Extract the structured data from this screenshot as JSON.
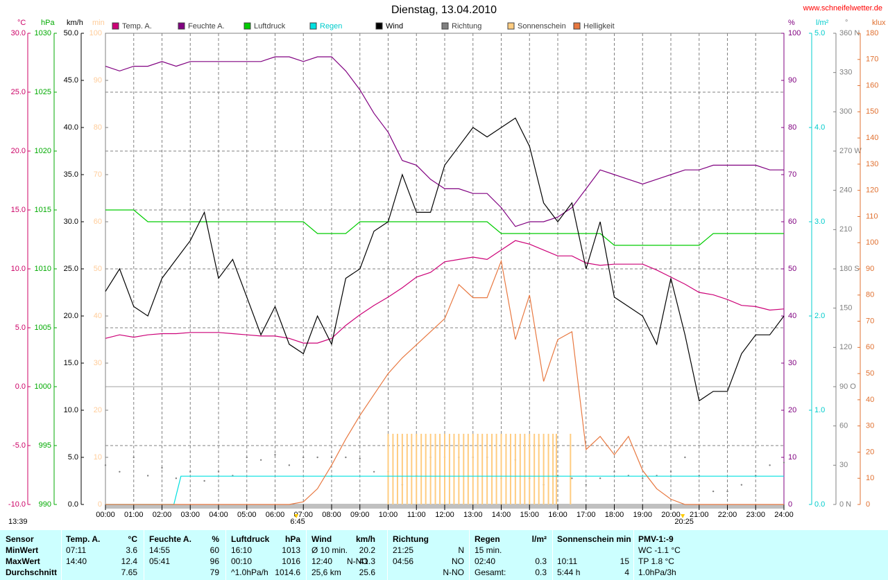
{
  "chart_data": {
    "type": "line",
    "title": "Dienstag, 13.04.2010",
    "source": "www.schneifelwetter.de",
    "time": "13:39",
    "annotations": [
      {
        "x": 6.75,
        "label": "6:45"
      },
      {
        "x": 20.42,
        "label": "20:25"
      }
    ],
    "xlim": [
      0,
      24
    ],
    "xticks": [
      {
        "value": 0,
        "label": "00:00"
      },
      {
        "value": 1,
        "label": "01:00"
      },
      {
        "value": 2,
        "label": "02:00"
      },
      {
        "value": 3,
        "label": "03:00"
      },
      {
        "value": 4,
        "label": "04:00"
      },
      {
        "value": 5,
        "label": "05:00"
      },
      {
        "value": 6,
        "label": "06:00"
      },
      {
        "value": 7,
        "label": "07:00"
      },
      {
        "value": 8,
        "label": "08:00"
      },
      {
        "value": 9,
        "label": "09:00"
      },
      {
        "value": 10,
        "label": "10:00"
      },
      {
        "value": 11,
        "label": "11:00"
      },
      {
        "value": 12,
        "label": "12:00"
      },
      {
        "value": 13,
        "label": "13:00"
      },
      {
        "value": 14,
        "label": "14:00"
      },
      {
        "value": 15,
        "label": "15:00"
      },
      {
        "value": 16,
        "label": "16:00"
      },
      {
        "value": 17,
        "label": "17:00"
      },
      {
        "value": 18,
        "label": "18:00"
      },
      {
        "value": 19,
        "label": "19:00"
      },
      {
        "value": 20,
        "label": "20:00"
      },
      {
        "value": 21,
        "label": "21:00"
      },
      {
        "value": 22,
        "label": "22:00"
      },
      {
        "value": 23,
        "label": "23:00"
      },
      {
        "value": 24,
        "label": "24:00"
      }
    ],
    "grid": true,
    "axes": [
      {
        "unit": "°C",
        "lim": [
          -10,
          30
        ],
        "color": "#cc0066",
        "ticks": [
          {
            "value": -10,
            "label": "-10.0"
          },
          {
            "value": -5,
            "label": "-5.0"
          },
          {
            "value": 0,
            "label": "0.0"
          },
          {
            "value": 5,
            "label": "5.0"
          },
          {
            "value": 10,
            "label": "10.0"
          },
          {
            "value": 15,
            "label": "15.0"
          },
          {
            "value": 20,
            "label": "20.0"
          },
          {
            "value": 25,
            "label": "25.0"
          },
          {
            "value": 30,
            "label": "30.0"
          }
        ]
      },
      {
        "unit": "hPa",
        "lim": [
          990,
          1030
        ],
        "color": "#00aa00",
        "ticks": [
          990,
          995,
          1000,
          1005,
          1010,
          1015,
          1020,
          1025,
          1030
        ]
      },
      {
        "unit": "km/h",
        "lim": [
          0,
          50
        ],
        "color": "#000000",
        "ticks": [
          {
            "value": 0,
            "label": "0.0"
          },
          {
            "value": 5,
            "label": "5.0"
          },
          {
            "value": 10,
            "label": "10.0"
          },
          {
            "value": 15,
            "label": "15.0"
          },
          {
            "value": 20,
            "label": "20.0"
          },
          {
            "value": 25,
            "label": "25.0"
          },
          {
            "value": 30,
            "label": "30.0"
          },
          {
            "value": 35,
            "label": "35.0"
          },
          {
            "value": 40,
            "label": "40.0"
          },
          {
            "value": 45,
            "label": "45.0"
          },
          {
            "value": 50,
            "label": "50.0"
          }
        ]
      },
      {
        "unit": "min",
        "lim": [
          0,
          100
        ],
        "color": "#ffcc99",
        "ticks": [
          0,
          10,
          20,
          30,
          40,
          50,
          60,
          70,
          80,
          90,
          100
        ]
      },
      {
        "unit": "%",
        "lim": [
          0,
          100
        ],
        "color": "#800080",
        "ticks": [
          0,
          10,
          20,
          30,
          40,
          50,
          60,
          70,
          80,
          90,
          100
        ]
      },
      {
        "unit": "l/m²",
        "lim": [
          0,
          5
        ],
        "color": "#00cccc",
        "ticks": [
          {
            "value": 0,
            "label": "0.0"
          },
          {
            "value": 1,
            "label": "1.0"
          },
          {
            "value": 2,
            "label": "2.0"
          },
          {
            "value": 3,
            "label": "3.0"
          },
          {
            "value": 4,
            "label": "4.0"
          },
          {
            "value": 5,
            "label": "5.0"
          }
        ]
      },
      {
        "unit": "°",
        "lim": [
          0,
          360
        ],
        "color": "#808080",
        "ticks": [
          {
            "value": 0,
            "label": "0 N"
          },
          30,
          60,
          {
            "value": 90,
            "label": "90 O"
          },
          120,
          150,
          {
            "value": 180,
            "label": "180 S"
          },
          210,
          240,
          {
            "value": 270,
            "label": "270 W"
          },
          300,
          330,
          {
            "value": 360,
            "label": "360 N"
          }
        ]
      },
      {
        "unit": "klux",
        "lim": [
          0,
          180
        ],
        "color": "#e07030",
        "ticks": [
          0,
          10,
          20,
          30,
          40,
          50,
          60,
          70,
          80,
          90,
          100,
          110,
          120,
          130,
          140,
          150,
          160,
          170,
          180
        ]
      }
    ],
    "x": [
      0,
      0.5,
      1,
      1.5,
      2,
      2.5,
      3,
      3.5,
      4,
      4.5,
      5,
      5.5,
      6,
      6.5,
      7,
      7.5,
      8,
      8.5,
      9,
      9.5,
      10,
      10.5,
      11,
      11.5,
      12,
      12.5,
      13,
      13.5,
      14,
      14.5,
      15,
      15.5,
      16,
      16.5,
      17,
      17.5,
      18,
      18.5,
      19,
      19.5,
      20,
      20.5,
      21,
      21.5,
      22,
      22.5,
      23,
      23.5,
      24
    ],
    "series": [
      {
        "name": "Temp. A.",
        "color": "#cc0077",
        "axis": 0,
        "style": "line",
        "values": [
          4.1,
          4.4,
          4.2,
          4.4,
          4.5,
          4.5,
          4.6,
          4.6,
          4.6,
          4.5,
          4.4,
          4.3,
          4.3,
          4.1,
          3.7,
          3.7,
          4.1,
          5.2,
          6.1,
          6.9,
          7.6,
          8.4,
          9.3,
          9.7,
          10.6,
          10.8,
          11.0,
          10.8,
          11.6,
          12.4,
          12.1,
          11.6,
          11.1,
          11.1,
          10.5,
          10.3,
          10.4,
          10.4,
          10.4,
          9.9,
          9.3,
          8.7,
          8.0,
          7.8,
          7.4,
          6.9,
          6.8,
          6.5,
          6.6
        ]
      },
      {
        "name": "Feuchte A.",
        "color": "#800080",
        "axis": 4,
        "style": "line",
        "values": [
          93,
          92,
          93,
          93,
          94,
          93,
          94,
          94,
          94,
          94,
          94,
          94,
          95,
          95,
          94,
          95,
          95,
          92,
          88,
          83,
          79,
          73,
          72,
          69,
          67,
          67,
          66,
          66,
          63,
          59,
          60,
          60,
          61,
          63,
          67,
          71,
          70,
          69,
          68,
          69,
          70,
          71,
          71,
          72,
          72,
          72,
          72,
          71,
          71
        ]
      },
      {
        "name": "Luftdruck",
        "color": "#00cc00",
        "axis": 1,
        "style": "line",
        "values": [
          1015,
          1015,
          1015,
          1014,
          1014,
          1014,
          1014,
          1014,
          1014,
          1014,
          1014,
          1014,
          1014,
          1014,
          1014,
          1013,
          1013,
          1013,
          1014,
          1014,
          1014,
          1014,
          1014,
          1014,
          1014,
          1014,
          1014,
          1014,
          1013,
          1013,
          1013,
          1013,
          1013,
          1013,
          1013,
          1013,
          1012,
          1012,
          1012,
          1012,
          1012,
          1012,
          1012,
          1013,
          1013,
          1013,
          1013,
          1013,
          1013
        ]
      },
      {
        "name": "Regen",
        "color": "#00e0e0",
        "axis": 5,
        "style": "line",
        "x": [
          0,
          2.42,
          2.67,
          24
        ],
        "values": [
          0,
          0,
          0.3,
          0.3
        ]
      },
      {
        "name": "Wind",
        "color": "#000000",
        "axis": 2,
        "style": "line",
        "values": [
          22.6,
          25,
          21,
          20,
          24,
          26,
          28,
          31,
          24,
          26,
          22,
          18,
          21,
          17,
          16,
          20,
          17,
          24,
          25,
          29,
          30,
          35,
          31,
          31,
          36,
          38,
          40,
          39,
          40,
          41,
          38,
          32,
          30,
          32,
          25,
          30,
          22,
          21,
          20,
          17,
          24,
          18,
          11,
          12,
          12,
          16,
          18,
          18,
          20
        ]
      },
      {
        "name": "Richtung",
        "color": "#808080",
        "axis": 6,
        "style": "dots",
        "values": [
          30,
          25,
          36,
          22,
          28,
          20,
          25,
          18,
          25,
          22,
          36,
          34,
          38,
          30,
          36,
          36,
          36,
          36,
          35,
          25,
          25,
          15,
          22,
          36,
          36,
          36,
          36,
          36,
          20,
          34,
          20,
          15,
          22,
          20,
          15,
          20,
          25,
          22,
          20,
          22,
          25,
          36,
          22,
          10,
          10,
          15,
          22,
          30,
          32
        ]
      },
      {
        "name": "Sonnenschein",
        "color": "#ffcc80",
        "axis": 3,
        "style": "bars",
        "x": [
          10,
          10.17,
          10.33,
          10.5,
          10.67,
          10.83,
          11,
          11.17,
          11.33,
          11.5,
          11.67,
          11.83,
          12,
          12.17,
          12.33,
          12.5,
          12.67,
          12.83,
          13,
          13.17,
          13.33,
          13.5,
          13.67,
          13.83,
          14,
          14.17,
          14.33,
          14.5,
          14.67,
          14.83,
          15,
          15.17,
          15.33,
          15.5,
          15.67,
          15.83,
          15.95,
          16.45
        ],
        "values": [
          15,
          15,
          15,
          15,
          15,
          15,
          15,
          15,
          15,
          15,
          15,
          15,
          15,
          15,
          15,
          15,
          15,
          15,
          15,
          15,
          15,
          15,
          15,
          15,
          15,
          15,
          15,
          15,
          15,
          15,
          15,
          15,
          15,
          15,
          15,
          15,
          15,
          15
        ]
      },
      {
        "name": "Helligkeit",
        "color": "#e87840",
        "axis": 7,
        "style": "line",
        "values": [
          0,
          0,
          0,
          0,
          0,
          0,
          0,
          0,
          0,
          0,
          0,
          0,
          0,
          0,
          1,
          6,
          15,
          25,
          34,
          42,
          50,
          56,
          61,
          66,
          71,
          84,
          79,
          79,
          93,
          63,
          80,
          47,
          63,
          66,
          21,
          26,
          19,
          26,
          13,
          6,
          2,
          0,
          0,
          0,
          0,
          0,
          0,
          0,
          0
        ]
      }
    ]
  },
  "table": {
    "rows": [
      [
        "Sensor",
        "Temp. A.",
        "°C",
        "Feuchte A.",
        "%",
        "Luftdruck",
        "hPa",
        "Wind",
        null,
        "km/h",
        "Richtung",
        null,
        "Regen",
        "l/m²",
        "Sonnenschein min",
        null,
        "PMV-1:-9"
      ],
      [
        "MinWert",
        "07:11",
        "3.6",
        "14:55",
        "60",
        "16:10",
        "1013",
        "Ø 10 min.",
        null,
        "20.2",
        "21:25",
        "N",
        "15 min.",
        null,
        null,
        null,
        "WC -1.1 °C"
      ],
      [
        "MaxWert",
        "14:40",
        "12.4",
        "05:41",
        "96",
        "00:10",
        "1016",
        "12:40",
        "N-NO",
        "41.3",
        "04:56",
        "NO",
        "02:40",
        "0.3",
        "10:11",
        "15",
        "TP 1.8 °C"
      ],
      [
        "Durchschnitt",
        null,
        "7.65",
        null,
        "79",
        "^1.0hPa/h",
        "1014.6",
        "25,6 km",
        null,
        "25.6",
        null,
        "N-NO",
        "Gesamt:",
        "0.3",
        "5:44 h",
        "4",
        "1.0hPa/3h"
      ]
    ]
  }
}
